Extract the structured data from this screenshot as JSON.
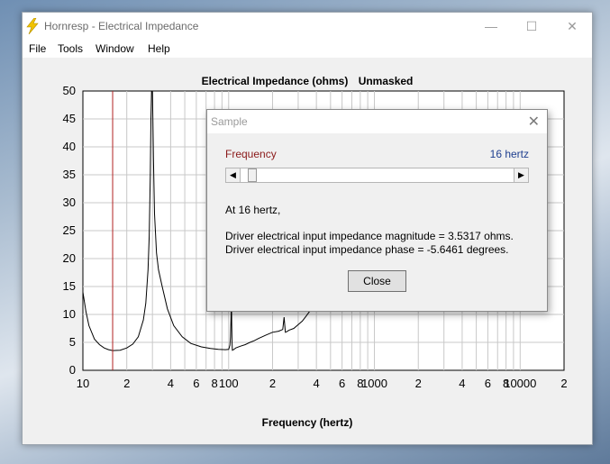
{
  "window": {
    "title": "Hornresp - Electrical Impedance",
    "controls": {
      "minimize": "—",
      "maximize": "☐",
      "close": "✕"
    }
  },
  "menu": [
    "File",
    "Tools",
    "Window",
    "Help"
  ],
  "chart_title": {
    "main": "Electrical Impedance (ohms)",
    "mask": "Unmasked"
  },
  "chart_data": {
    "type": "line",
    "title": "Electrical Impedance (ohms)   Unmasked",
    "xlabel": "Frequency (hertz)",
    "ylabel": "",
    "x_scale": "log",
    "xlim": [
      10,
      20000
    ],
    "ylim": [
      0,
      50
    ],
    "y_ticks": [
      0,
      5,
      10,
      15,
      20,
      25,
      30,
      35,
      40,
      45,
      50
    ],
    "x_tick_labels": [
      {
        "value": 10,
        "label": "10"
      },
      {
        "value": 20,
        "label": "2"
      },
      {
        "value": 40,
        "label": "4"
      },
      {
        "value": 60,
        "label": "6"
      },
      {
        "value": 80,
        "label": "8"
      },
      {
        "value": 100,
        "label": "100"
      },
      {
        "value": 200,
        "label": "2"
      },
      {
        "value": 400,
        "label": "4"
      },
      {
        "value": 600,
        "label": "6"
      },
      {
        "value": 800,
        "label": "8"
      },
      {
        "value": 1000,
        "label": "1000"
      },
      {
        "value": 2000,
        "label": "2"
      },
      {
        "value": 4000,
        "label": "4"
      },
      {
        "value": 6000,
        "label": "6"
      },
      {
        "value": 8000,
        "label": "8"
      },
      {
        "value": 10000,
        "label": "10000"
      },
      {
        "value": 20000,
        "label": "2"
      }
    ],
    "grid": true,
    "cursor_frequency": 16,
    "series": [
      {
        "color": "#000000",
        "x": [
          10,
          10.5,
          11,
          12,
          13,
          14,
          15,
          16,
          18,
          20,
          22,
          24,
          26,
          27,
          28,
          28.5,
          29,
          29.3,
          29.6,
          30,
          30.5,
          31,
          32,
          33,
          35,
          38,
          42,
          48,
          55,
          65,
          75,
          85,
          95,
          100,
          102,
          103,
          104,
          104.5,
          105,
          105.5,
          106,
          108,
          112,
          120,
          130,
          140,
          150,
          160,
          170,
          180,
          200,
          220,
          235,
          240,
          245,
          250,
          260,
          280,
          300,
          320,
          340,
          360,
          380,
          400,
          420,
          440,
          460,
          480,
          500,
          520,
          540
        ],
        "y": [
          14,
          10.5,
          8,
          5.6,
          4.6,
          4.0,
          3.7,
          3.53,
          3.6,
          4.0,
          4.7,
          6.0,
          9.0,
          12,
          18,
          24,
          35,
          45,
          50,
          50,
          38,
          28,
          21,
          18,
          15,
          11,
          8,
          6,
          4.8,
          4.2,
          3.9,
          3.75,
          3.7,
          3.75,
          4.5,
          6,
          10,
          12.5,
          8,
          5,
          3.6,
          3.7,
          4.0,
          4.3,
          4.6,
          5.0,
          5.3,
          5.7,
          6.0,
          6.3,
          6.8,
          7.0,
          7.3,
          9.5,
          6.8,
          6.9,
          7.2,
          7.5,
          8.2,
          8.8,
          9.7,
          10.6,
          11.7,
          12.8,
          14.0,
          15.3,
          16.7,
          18.2,
          19.8,
          21.5,
          23.3
        ]
      }
    ]
  },
  "xlabel": "Frequency (hertz)",
  "dialog": {
    "title": "Sample",
    "close_icon": "✕",
    "frequency_label": "Frequency",
    "frequency_value": "16 hertz",
    "slider_value": 16,
    "line1": "At 16 hertz,",
    "line2": "Driver electrical input impedance magnitude = 3.5317 ohms.",
    "line3": "Driver electrical input impedance phase = -5.6461 degrees.",
    "close_label": "Close"
  },
  "colors": {
    "cursor": "#b22222",
    "curve": "#000000",
    "grid": "#c8c8c8",
    "frequency_label": "#8b1a1a",
    "frequency_value": "#1f3f8f"
  }
}
